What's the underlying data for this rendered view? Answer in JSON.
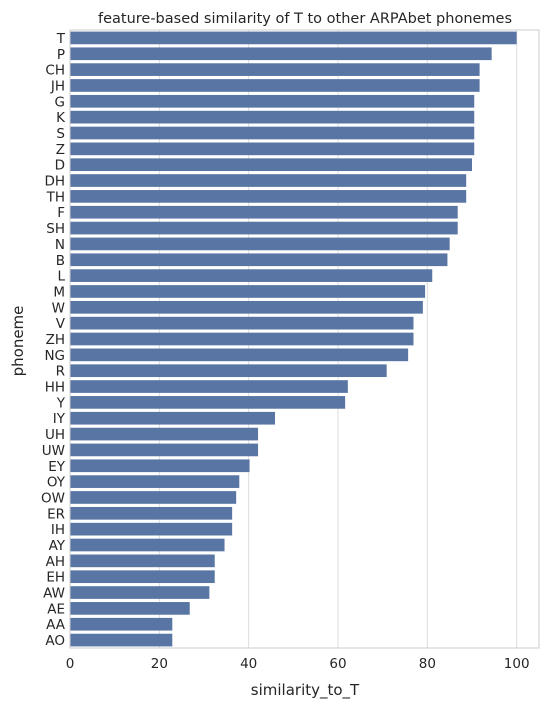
{
  "chart_data": {
    "type": "bar",
    "orientation": "horizontal",
    "title": "feature-based similarity of T to other ARPAbet phonemes",
    "xlabel": "similarity_to_T",
    "ylabel": "phoneme",
    "xlim": [
      0,
      105
    ],
    "xticks": [
      0,
      20,
      40,
      60,
      80,
      100
    ],
    "grid": "vertical",
    "bar_color": "#5875a4",
    "categories": [
      "T",
      "P",
      "CH",
      "JH",
      "G",
      "K",
      "S",
      "Z",
      "D",
      "DH",
      "TH",
      "F",
      "SH",
      "N",
      "B",
      "L",
      "M",
      "W",
      "V",
      "ZH",
      "NG",
      "R",
      "HH",
      "Y",
      "IY",
      "UH",
      "UW",
      "EY",
      "OY",
      "OW",
      "ER",
      "IH",
      "AY",
      "AH",
      "EH",
      "AW",
      "AE",
      "AA",
      "AO"
    ],
    "values": [
      100,
      94.4,
      91.7,
      91.7,
      90.5,
      90.5,
      90.5,
      90.5,
      90.0,
      88.7,
      88.7,
      86.8,
      86.8,
      85.0,
      84.5,
      81.1,
      79.5,
      79.0,
      76.9,
      76.9,
      75.7,
      70.9,
      62.2,
      61.6,
      45.9,
      42.1,
      42.1,
      40.2,
      37.9,
      37.2,
      36.3,
      36.3,
      34.6,
      32.4,
      32.4,
      31.2,
      26.8,
      22.9,
      22.9
    ]
  }
}
